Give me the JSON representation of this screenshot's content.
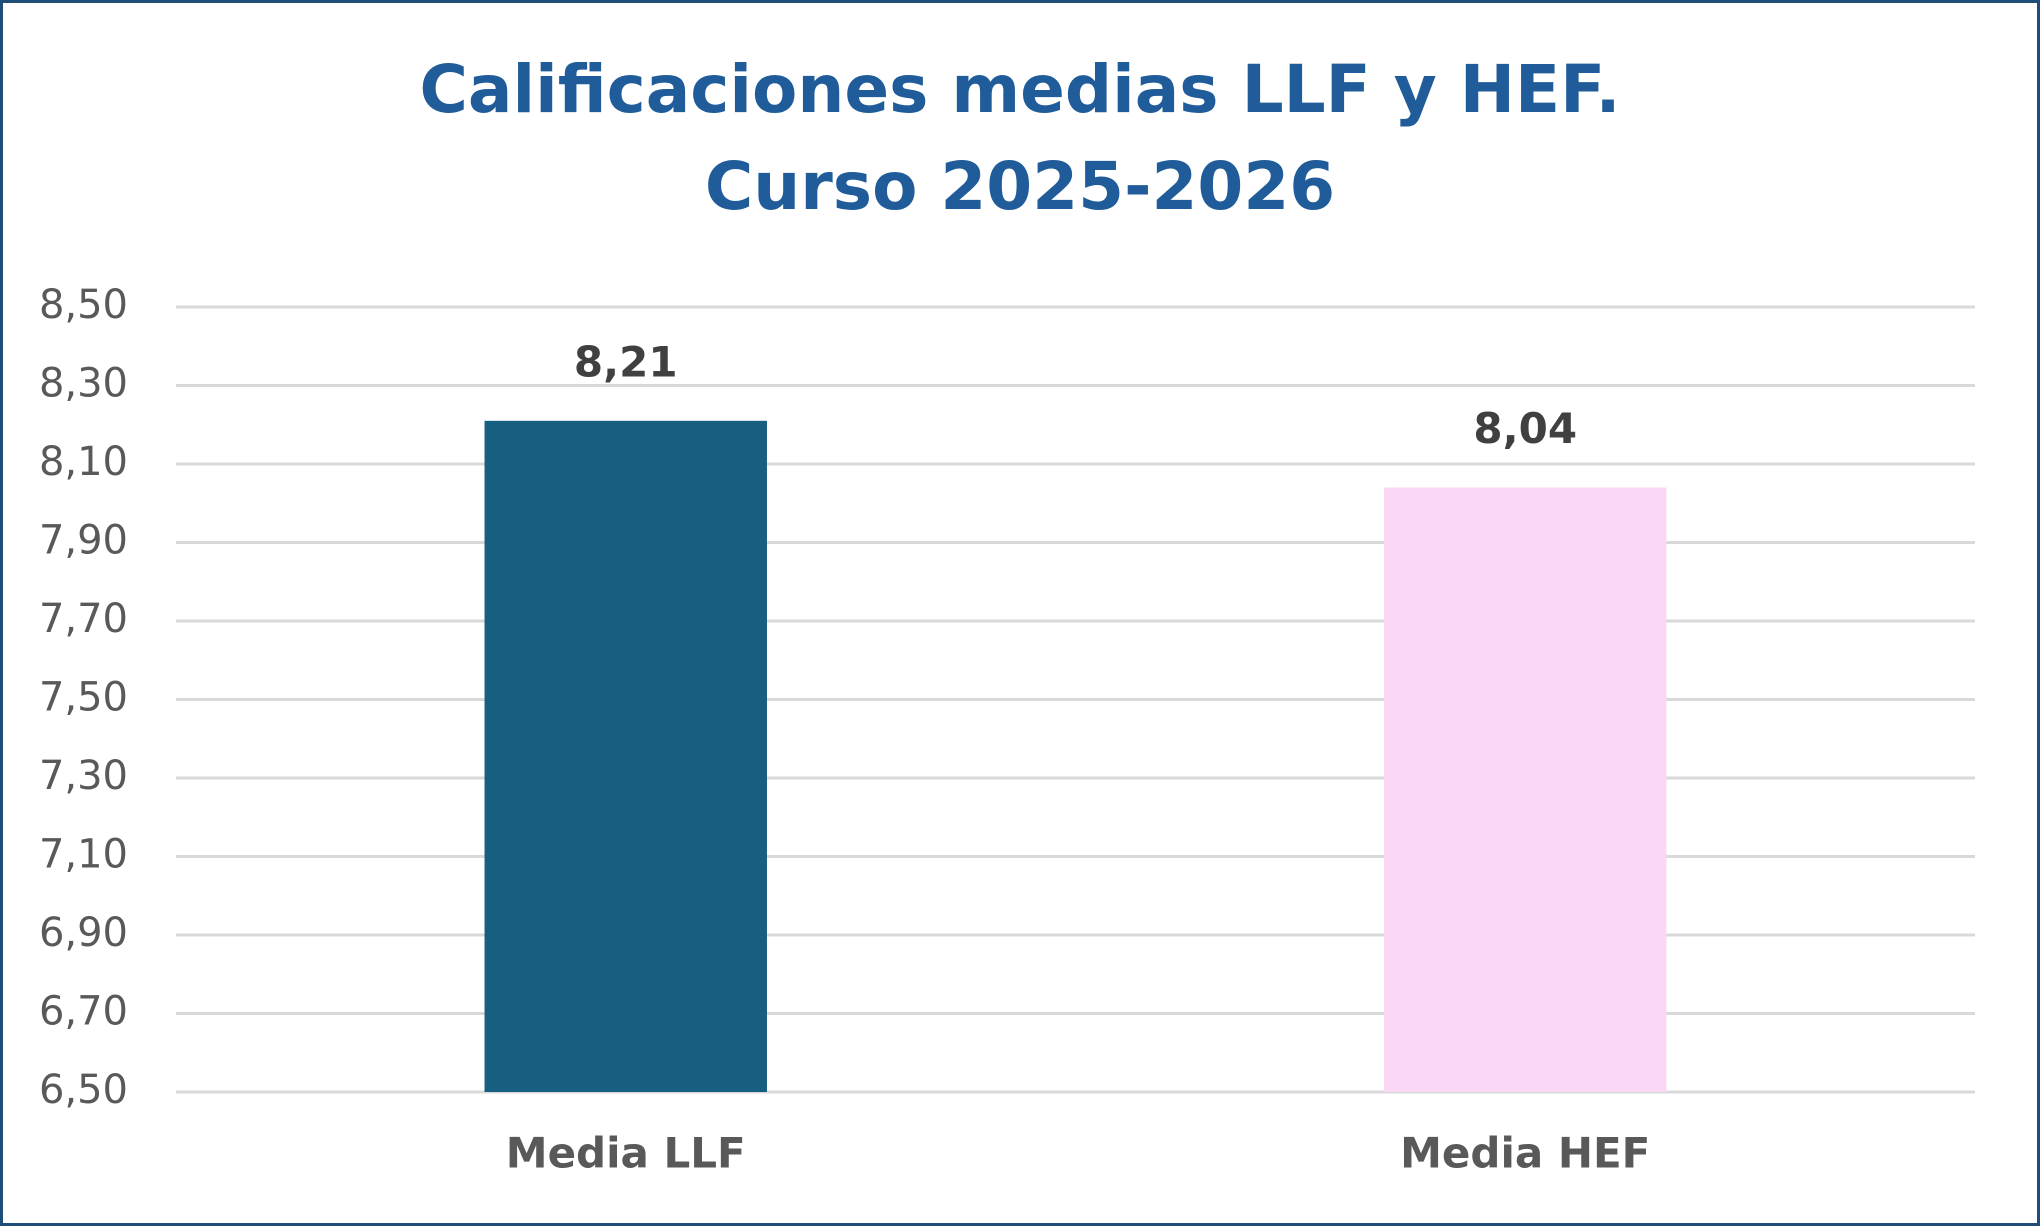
{
  "chart_data": {
    "type": "bar",
    "title": [
      "Calificaciones medias LLF y HEF.",
      "Curso 2025-2026"
    ],
    "categories": [
      "Media LLF",
      "Media HEF"
    ],
    "values": [
      8.21,
      8.04
    ],
    "value_labels": [
      "8,21",
      "8,04"
    ],
    "colors": [
      "#175f80",
      "#fad7f4"
    ],
    "ylim": [
      6.5,
      8.5
    ],
    "yticks": [
      {
        "value": 6.5,
        "label": "6,50"
      },
      {
        "value": 6.7,
        "label": "6,70"
      },
      {
        "value": 6.9,
        "label": "6,90"
      },
      {
        "value": 7.1,
        "label": "7,10"
      },
      {
        "value": 7.3,
        "label": "7,30"
      },
      {
        "value": 7.5,
        "label": "7,50"
      },
      {
        "value": 7.7,
        "label": "7,70"
      },
      {
        "value": 7.9,
        "label": "7,90"
      },
      {
        "value": 8.1,
        "label": "8,10"
      },
      {
        "value": 8.3,
        "label": "8,30"
      },
      {
        "value": 8.5,
        "label": "8,50"
      }
    ],
    "grid": true
  }
}
